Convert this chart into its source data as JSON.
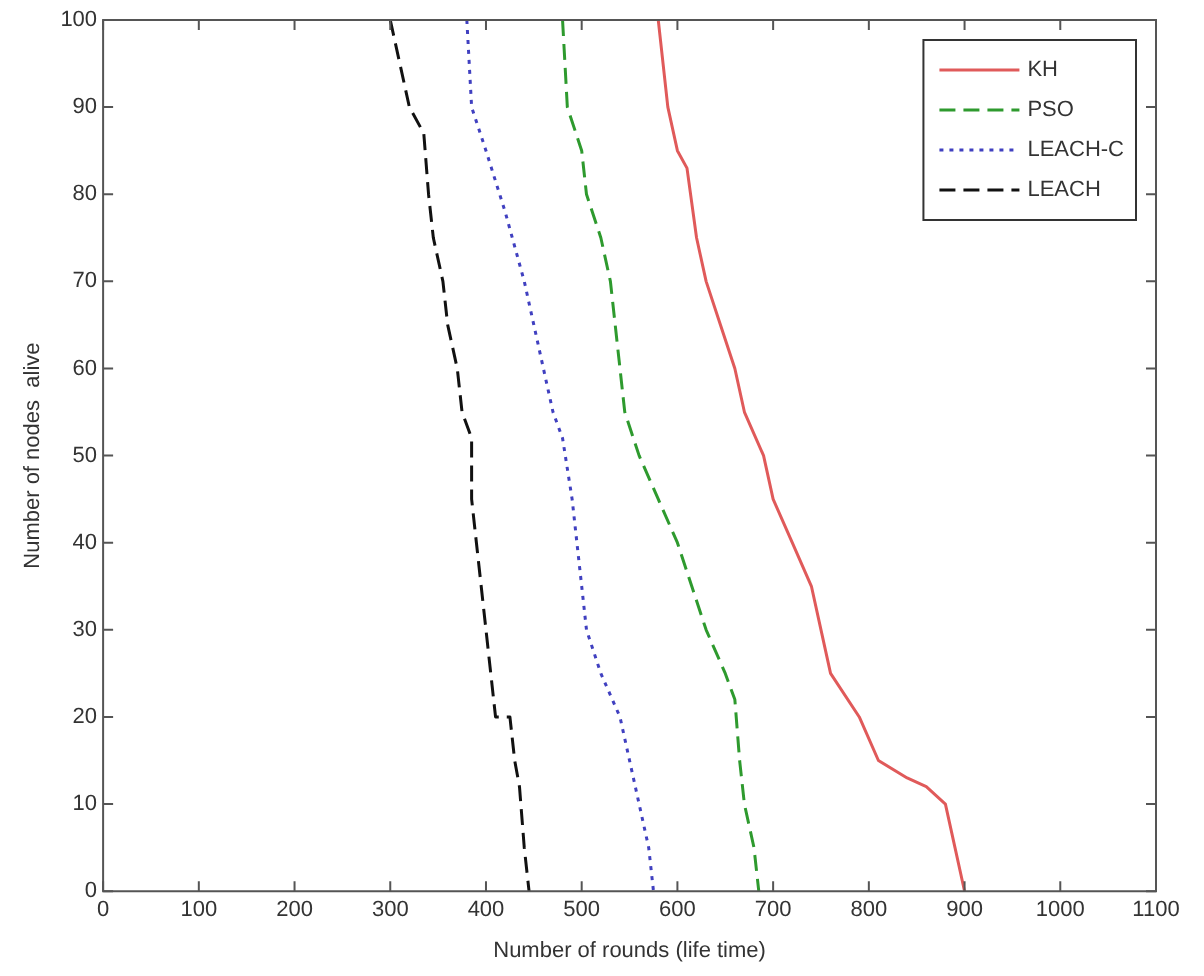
{
  "chart_data": {
    "type": "line",
    "xlabel": "Number of rounds (life time)",
    "ylabel": "Number of nodes  alive",
    "xlim": [
      0,
      1100
    ],
    "xticks": [
      0,
      100,
      200,
      300,
      400,
      500,
      600,
      700,
      800,
      900,
      1000,
      1100
    ],
    "ylim": [
      0,
      100
    ],
    "yticks": [
      0,
      10,
      20,
      30,
      40,
      50,
      60,
      70,
      80,
      90,
      100
    ],
    "grid": false,
    "legend": "top right",
    "marker": "none",
    "series": [
      {
        "name": "KH",
        "color": "#e05a5a",
        "line_style": "solid",
        "x": [
          580,
          590,
          600,
          610,
          620,
          630,
          645,
          660,
          670,
          690,
          700,
          720,
          740,
          750,
          760,
          790,
          810,
          840,
          860,
          880,
          890,
          900
        ],
        "values": [
          100,
          90,
          85,
          83,
          75,
          70,
          65,
          60,
          55,
          50,
          45,
          40,
          35,
          30,
          25,
          20,
          15,
          13,
          12,
          10,
          5,
          0
        ]
      },
      {
        "name": "PSO",
        "color": "#2e9a2e",
        "line_style": "dashed",
        "x": [
          480,
          485,
          500,
          505,
          520,
          530,
          540,
          545,
          560,
          580,
          600,
          615,
          630,
          650,
          660,
          665,
          670,
          680,
          685
        ],
        "values": [
          100,
          90,
          85,
          80,
          75,
          70,
          60,
          55,
          50,
          45,
          40,
          35,
          30,
          25,
          22,
          15,
          10,
          5,
          0
        ]
      },
      {
        "name": "LEACH-C",
        "color": "#4040c0",
        "line_style": "dotted",
        "x": [
          380,
          385,
          400,
          420,
          440,
          450,
          460,
          470,
          480,
          490,
          495,
          500,
          505,
          520,
          540,
          550,
          560,
          570,
          575
        ],
        "values": [
          100,
          90,
          85,
          78,
          70,
          65,
          60,
          55,
          52,
          45,
          40,
          35,
          30,
          25,
          20,
          15,
          10,
          5,
          0
        ]
      },
      {
        "name": "LEACH",
        "color": "#111111",
        "line_style": "dashed",
        "x": [
          300,
          310,
          320,
          335,
          340,
          345,
          355,
          360,
          370,
          375,
          385,
          385,
          390,
          395,
          400,
          405,
          410,
          425,
          430,
          435,
          440,
          445
        ],
        "values": [
          100,
          95,
          90,
          87,
          80,
          75,
          70,
          65,
          60,
          55,
          52,
          45,
          40,
          35,
          30,
          25,
          20,
          20,
          15,
          12,
          5,
          0
        ]
      }
    ]
  }
}
